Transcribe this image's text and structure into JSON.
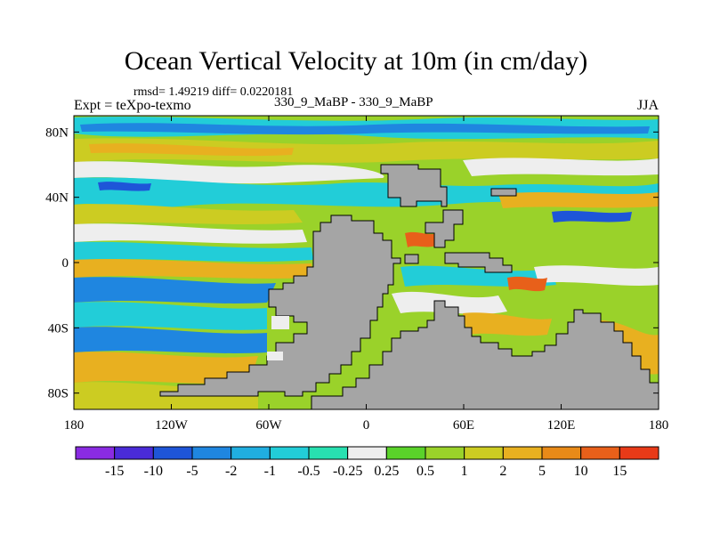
{
  "figure": {
    "title": "Ocean Vertical Velocity at 10m (in cm/day)",
    "stats": "rmsd= 1.49219 diff= 0.0220181",
    "experiment": "Expt = teXpo-texmo",
    "difference_label": "330_9_MaBP - 330_9_MaBP",
    "season": "JJA"
  },
  "map": {
    "lat_ticks": [
      "80N",
      "40N",
      "0",
      "40S",
      "80S"
    ],
    "lat_values": [
      80,
      40,
      0,
      -40,
      -80
    ],
    "lon_ticks": [
      "180",
      "120W",
      "60W",
      "0",
      "60E",
      "120E",
      "180"
    ],
    "lon_values": [
      -180,
      -120,
      -60,
      0,
      60,
      120,
      180
    ],
    "land_color": "#a5a5a5"
  },
  "colorbar": {
    "labels": [
      "-15",
      "-10",
      "-5",
      "-2",
      "-1",
      "-0.5",
      "-0.25",
      "0.25",
      "0.5",
      "1",
      "2",
      "5",
      "10",
      "15"
    ],
    "colors": [
      "#8a2be2",
      "#4a2bd8",
      "#1e55d8",
      "#1f86e0",
      "#20aee0",
      "#22cdd8",
      "#28e0b0",
      "#eeeeee",
      "#5ad22a",
      "#9ad22a",
      "#cccc22",
      "#e8b020",
      "#e88a18",
      "#e8601a",
      "#e83a18"
    ]
  }
}
